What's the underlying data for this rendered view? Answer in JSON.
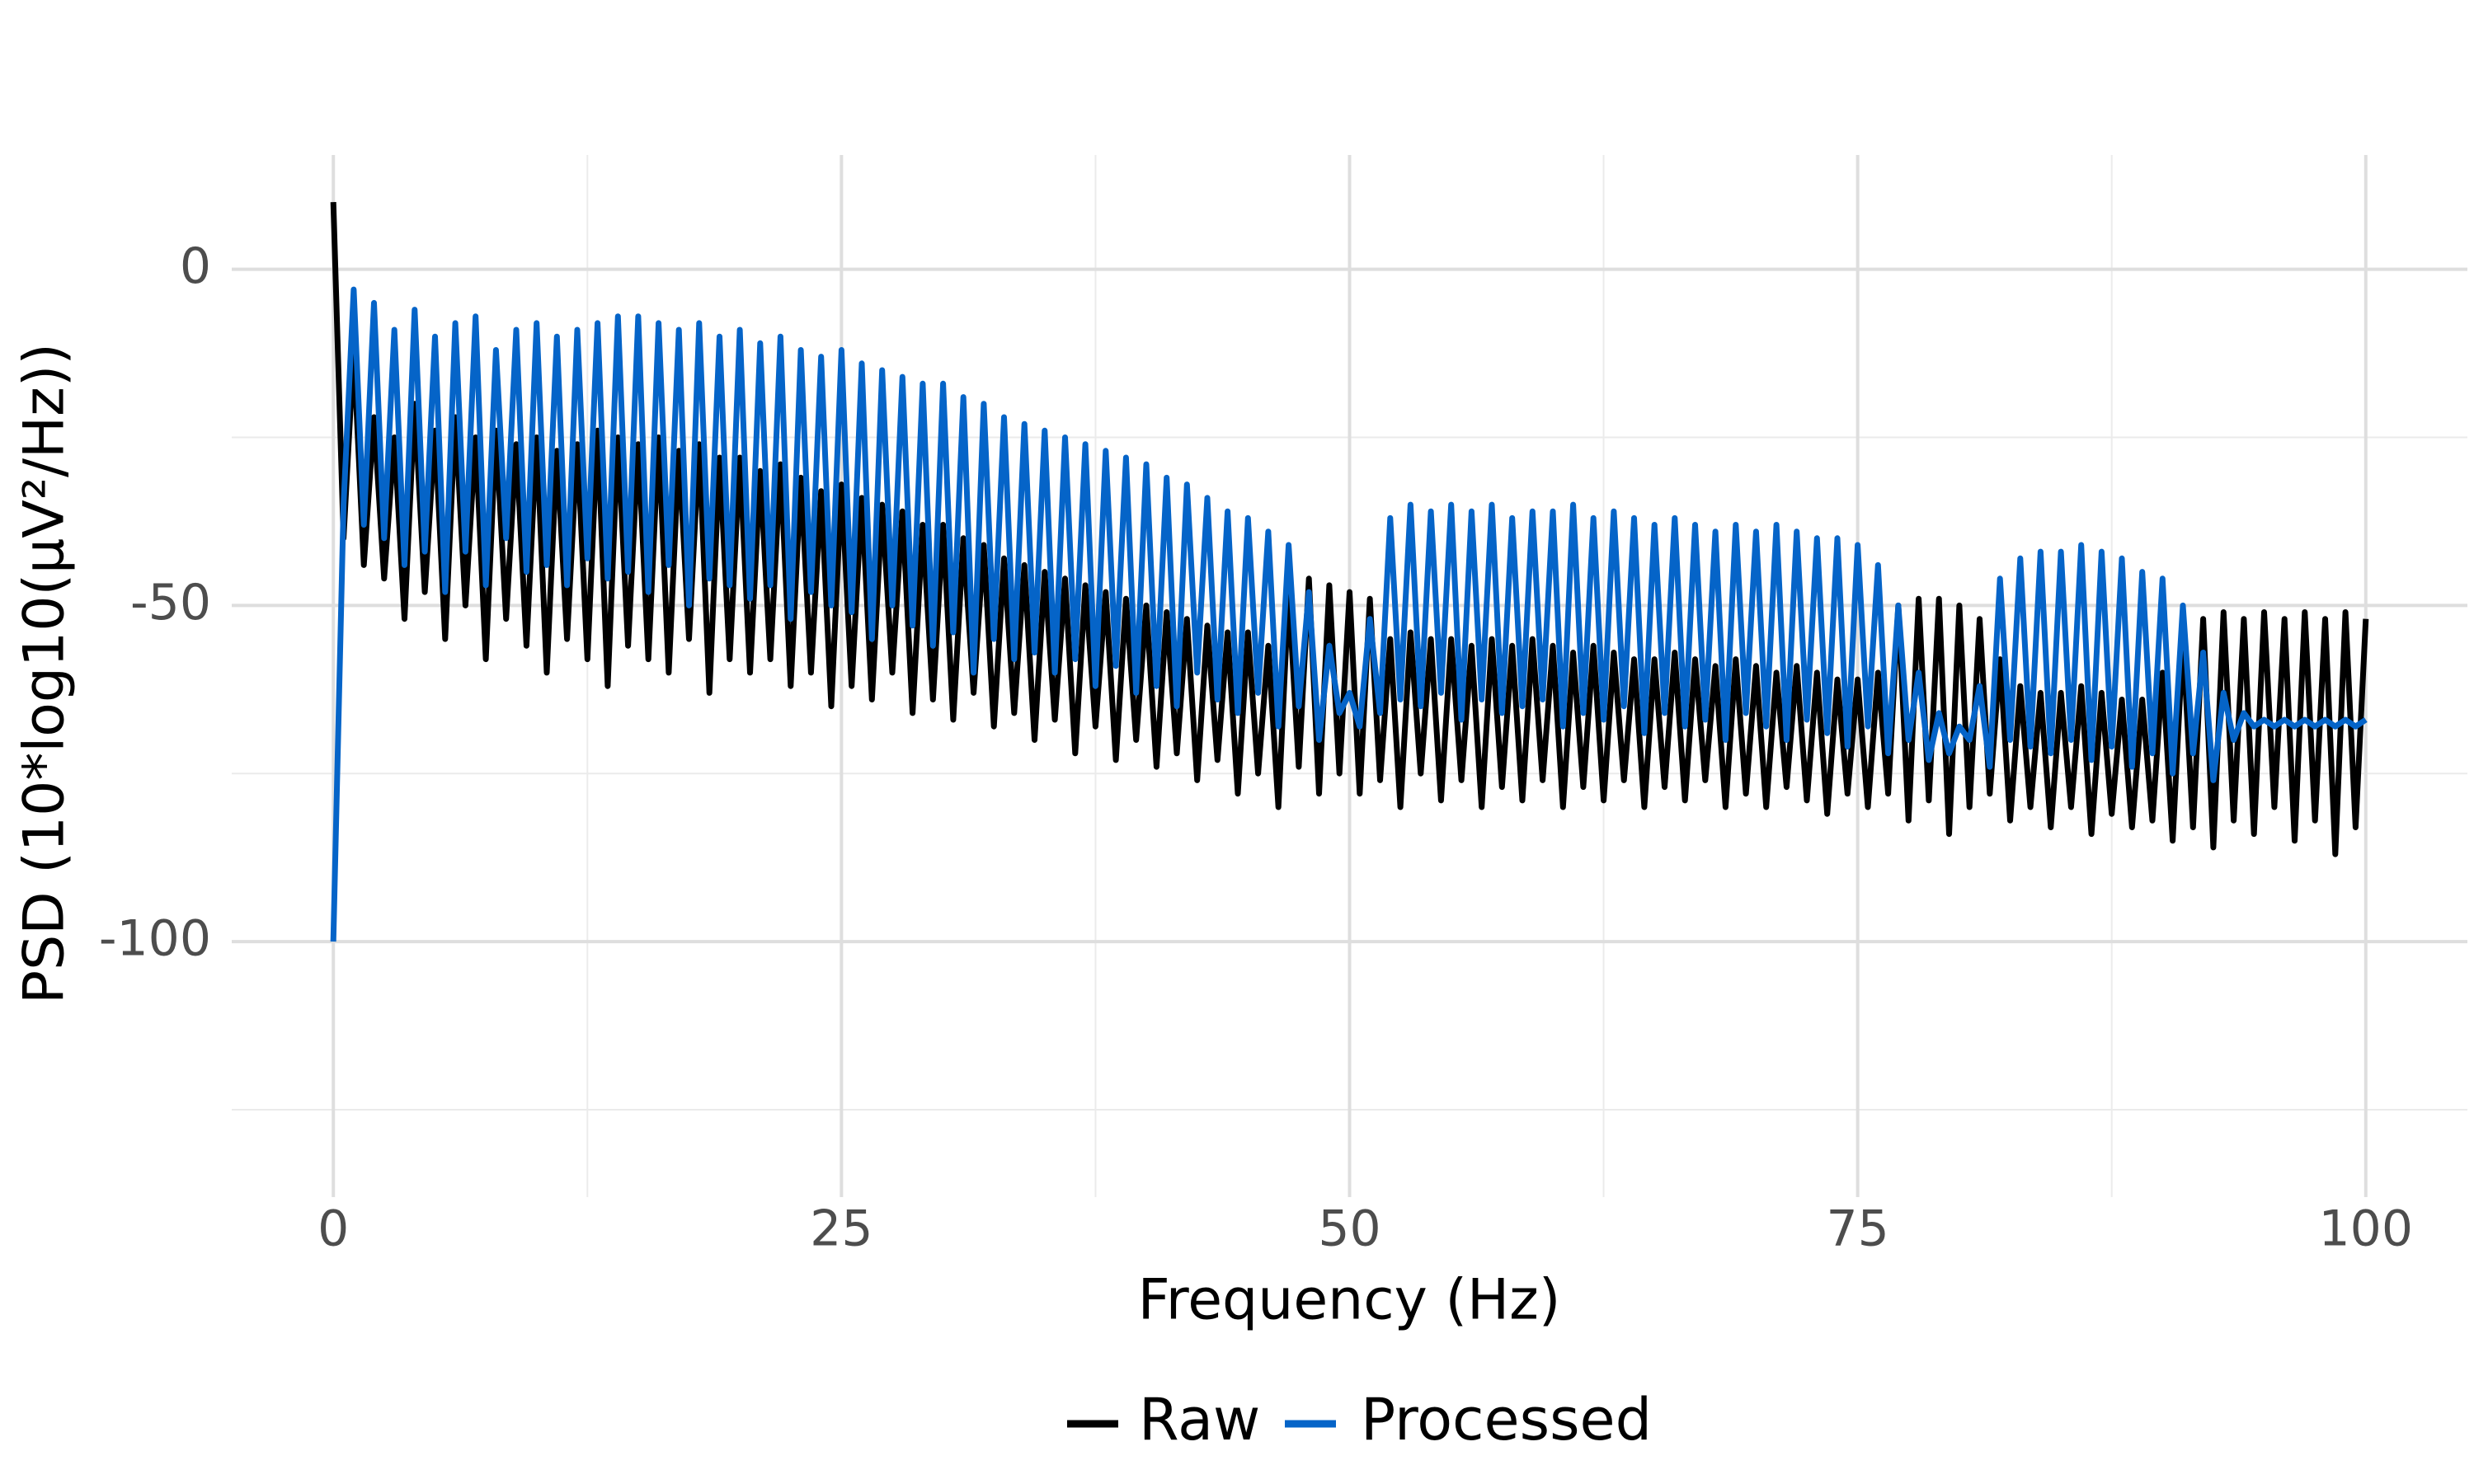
{
  "chart_data": {
    "type": "line",
    "x_label": "Frequency (Hz)",
    "y_label": "PSD (10*log10(µV²/Hz))",
    "x": [
      0,
      0.5,
      1,
      1.5,
      2,
      2.5,
      3,
      3.5,
      4,
      4.5,
      5,
      5.5,
      6,
      6.5,
      7,
      7.5,
      8,
      8.5,
      9,
      9.5,
      10,
      10.5,
      11,
      11.5,
      12,
      12.5,
      13,
      13.5,
      14,
      14.5,
      15,
      15.5,
      16,
      16.5,
      17,
      17.5,
      18,
      18.5,
      19,
      19.5,
      20,
      20.5,
      21,
      21.5,
      22,
      22.5,
      23,
      23.5,
      24,
      24.5,
      25,
      25.5,
      26,
      26.5,
      27,
      27.5,
      28,
      28.5,
      29,
      29.5,
      30,
      30.5,
      31,
      31.5,
      32,
      32.5,
      33,
      33.5,
      34,
      34.5,
      35,
      35.5,
      36,
      36.5,
      37,
      37.5,
      38,
      38.5,
      39,
      39.5,
      40,
      40.5,
      41,
      41.5,
      42,
      42.5,
      43,
      43.5,
      44,
      44.5,
      45,
      45.5,
      46,
      46.5,
      47,
      47.5,
      48,
      48.5,
      49,
      49.5,
      50,
      50.5,
      51,
      51.5,
      52,
      52.5,
      53,
      53.5,
      54,
      54.5,
      55,
      55.5,
      56,
      56.5,
      57,
      57.5,
      58,
      58.5,
      59,
      59.5,
      60,
      60.5,
      61,
      61.5,
      62,
      62.5,
      63,
      63.5,
      64,
      64.5,
      65,
      65.5,
      66,
      66.5,
      67,
      67.5,
      68,
      68.5,
      69,
      69.5,
      70,
      70.5,
      71,
      71.5,
      72,
      72.5,
      73,
      73.5,
      74,
      74.5,
      75,
      75.5,
      76,
      76.5,
      77,
      77.5,
      78,
      78.5,
      79,
      79.5,
      80,
      80.5,
      81,
      81.5,
      82,
      82.5,
      83,
      83.5,
      84,
      84.5,
      85,
      85.5,
      86,
      86.5,
      87,
      87.5,
      88,
      88.5,
      89,
      89.5,
      90,
      90.5,
      91,
      91.5,
      92,
      92.5,
      93,
      93.5,
      94,
      94.5,
      95,
      95.5,
      96,
      96.5,
      97,
      97.5,
      98,
      98.5,
      99,
      99.5,
      100
    ],
    "series": [
      {
        "name": "Raw",
        "color": "#000000",
        "values": [
          10,
          -40,
          -12,
          -44,
          -22,
          -46,
          -25,
          -52,
          -20,
          -48,
          -24,
          -55,
          -22,
          -50,
          -25,
          -58,
          -24,
          -52,
          -26,
          -56,
          -25,
          -60,
          -27,
          -55,
          -26,
          -58,
          -24,
          -62,
          -25,
          -56,
          -26,
          -58,
          -25,
          -60,
          -27,
          -55,
          -26,
          -63,
          -28,
          -58,
          -28,
          -60,
          -30,
          -58,
          -29,
          -62,
          -31,
          -60,
          -33,
          -65,
          -32,
          -62,
          -34,
          -64,
          -35,
          -60,
          -36,
          -66,
          -38,
          -64,
          -38,
          -67,
          -40,
          -63,
          -41,
          -68,
          -43,
          -66,
          -44,
          -70,
          -45,
          -67,
          -46,
          -72,
          -47,
          -68,
          -48,
          -73,
          -49,
          -70,
          -50,
          -74,
          -51,
          -72,
          -52,
          -76,
          -53,
          -73,
          -54,
          -78,
          -54,
          -75,
          -56,
          -80,
          -48,
          -74,
          -46,
          -78,
          -47,
          -75,
          -48,
          -78,
          -49,
          -76,
          -55,
          -80,
          -54,
          -75,
          -55,
          -79,
          -55,
          -76,
          -56,
          -80,
          -55,
          -77,
          -56,
          -79,
          -55,
          -76,
          -56,
          -80,
          -57,
          -77,
          -56,
          -79,
          -57,
          -76,
          -58,
          -80,
          -58,
          -77,
          -57,
          -79,
          -58,
          -76,
          -59,
          -80,
          -58,
          -78,
          -59,
          -80,
          -60,
          -77,
          -59,
          -79,
          -60,
          -81,
          -61,
          -78,
          -61,
          -80,
          -60,
          -78,
          -50,
          -82,
          -49,
          -79,
          -49,
          -84,
          -50,
          -80,
          -52,
          -78,
          -58,
          -82,
          -62,
          -80,
          -63,
          -83,
          -63,
          -80,
          -62,
          -84,
          -63,
          -81,
          -64,
          -83,
          -64,
          -82,
          -60,
          -85,
          -55,
          -83,
          -52,
          -86,
          -51,
          -82,
          -52,
          -84,
          -51,
          -80,
          -52,
          -85,
          -51,
          -82,
          -52,
          -87,
          -51,
          -83,
          -52
        ]
      },
      {
        "name": "Processed",
        "color": "#0564c8",
        "values": [
          -100,
          -35,
          -3,
          -38,
          -5,
          -40,
          -9,
          -44,
          -6,
          -42,
          -10,
          -48,
          -8,
          -42,
          -7,
          -47,
          -12,
          -40,
          -9,
          -45,
          -8,
          -44,
          -10,
          -47,
          -9,
          -43,
          -8,
          -46,
          -7,
          -45,
          -7,
          -48,
          -8,
          -44,
          -9,
          -50,
          -8,
          -46,
          -10,
          -47,
          -9,
          -49,
          -11,
          -47,
          -10,
          -52,
          -12,
          -48,
          -13,
          -50,
          -12,
          -51,
          -14,
          -55,
          -15,
          -50,
          -16,
          -53,
          -17,
          -56,
          -17,
          -54,
          -19,
          -60,
          -20,
          -55,
          -22,
          -58,
          -23,
          -57,
          -24,
          -60,
          -25,
          -58,
          -26,
          -62,
          -27,
          -59,
          -28,
          -63,
          -29,
          -62,
          -31,
          -65,
          -32,
          -60,
          -34,
          -64,
          -36,
          -66,
          -37,
          -63,
          -39,
          -68,
          -41,
          -65,
          -48,
          -70,
          -56,
          -66,
          -63,
          -68,
          -52,
          -66,
          -37,
          -64,
          -35,
          -65,
          -36,
          -63,
          -35,
          -67,
          -36,
          -64,
          -35,
          -66,
          -37,
          -65,
          -36,
          -64,
          -36,
          -68,
          -35,
          -66,
          -37,
          -67,
          -36,
          -65,
          -37,
          -69,
          -38,
          -66,
          -37,
          -68,
          -38,
          -67,
          -39,
          -70,
          -38,
          -66,
          -39,
          -68,
          -38,
          -70,
          -39,
          -67,
          -40,
          -69,
          -40,
          -71,
          -41,
          -68,
          -44,
          -72,
          -50,
          -70,
          -60,
          -73,
          -66,
          -72,
          -68,
          -70,
          -62,
          -74,
          -46,
          -70,
          -43,
          -71,
          -42,
          -72,
          -42,
          -70,
          -41,
          -73,
          -42,
          -71,
          -43,
          -74,
          -45,
          -72,
          -46,
          -75,
          -50,
          -72,
          -57,
          -76,
          -63,
          -70,
          -66,
          -68,
          -67,
          -68,
          -67,
          -68,
          -67,
          -68,
          -67,
          -68,
          -67,
          -68,
          -67
        ]
      }
    ],
    "xlim": [
      -5,
      105
    ],
    "xticks": [
      0,
      25,
      50,
      75,
      100
    ],
    "ylim": [
      -138,
      17
    ],
    "yticks": [
      0,
      -50,
      -100
    ],
    "grid": true,
    "legend": "bottom"
  }
}
